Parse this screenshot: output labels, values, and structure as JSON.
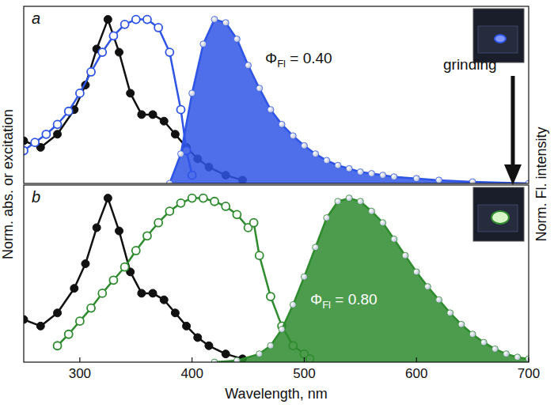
{
  "chart_data": [
    {
      "type": "line",
      "title": "a",
      "y_label": "Norm. abs. or excitation",
      "y2_label": "Norm. Fl. intensity",
      "xlim": [
        250,
        700
      ],
      "ylim": [
        0,
        1.08
      ],
      "tick_labels": false,
      "annotations": [
        {
          "text": "Φ",
          "sub": "Fl",
          "suffix": " = 0.40",
          "color": "#111111"
        },
        {
          "text": "grinding",
          "color": "#111111"
        }
      ],
      "series": [
        {
          "type": "line",
          "color": "#111111",
          "marker": "filled",
          "x": [
            250,
            265,
            280,
            295,
            305,
            315,
            325,
            335,
            345,
            355,
            365,
            375,
            385,
            395,
            405,
            415,
            430,
            445
          ],
          "values": [
            0.26,
            0.22,
            0.3,
            0.45,
            0.6,
            0.82,
            1.0,
            0.8,
            0.55,
            0.42,
            0.42,
            0.38,
            0.3,
            0.22,
            0.15,
            0.1,
            0.05,
            0.02
          ]
        },
        {
          "type": "line",
          "color": "#2f55e6",
          "marker": "open",
          "x": [
            250,
            260,
            270,
            280,
            290,
            300,
            310,
            320,
            330,
            340,
            350,
            360,
            370,
            380,
            390,
            395,
            400
          ],
          "values": [
            0.2,
            0.25,
            0.3,
            0.36,
            0.44,
            0.55,
            0.68,
            0.8,
            0.9,
            0.97,
            1.0,
            1.0,
            0.95,
            0.8,
            0.45,
            0.2,
            0.05
          ]
        },
        {
          "type": "area",
          "color": "#2f55e6",
          "marker": "sphere",
          "x": [
            380,
            390,
            400,
            410,
            420,
            430,
            440,
            450,
            460,
            470,
            480,
            490,
            500,
            510,
            520,
            530,
            540,
            550,
            560,
            570,
            580,
            600,
            620,
            650,
            700
          ],
          "values": [
            0.0,
            0.18,
            0.55,
            0.85,
            1.0,
            0.98,
            0.88,
            0.72,
            0.58,
            0.45,
            0.36,
            0.29,
            0.23,
            0.18,
            0.14,
            0.11,
            0.09,
            0.07,
            0.06,
            0.05,
            0.04,
            0.03,
            0.02,
            0.01,
            0.0
          ]
        }
      ]
    },
    {
      "type": "line",
      "title": "b",
      "x_label": "Wavelength, nm",
      "xlim": [
        250,
        700
      ],
      "ylim": [
        0,
        1.08
      ],
      "xticks": [
        300,
        400,
        500,
        600,
        700
      ],
      "tick_labels": "x",
      "annotations": [
        {
          "text": "Φ",
          "sub": "Fl",
          "suffix": " = 0.80",
          "color": "#ffffff"
        }
      ],
      "series": [
        {
          "type": "line",
          "color": "#111111",
          "marker": "filled",
          "x": [
            250,
            265,
            280,
            295,
            305,
            315,
            325,
            335,
            345,
            355,
            365,
            375,
            385,
            395,
            405,
            415,
            430,
            445
          ],
          "values": [
            0.26,
            0.22,
            0.3,
            0.45,
            0.6,
            0.82,
            1.0,
            0.8,
            0.55,
            0.42,
            0.42,
            0.38,
            0.3,
            0.22,
            0.15,
            0.1,
            0.05,
            0.02
          ]
        },
        {
          "type": "line",
          "color": "#2e8b2e",
          "marker": "open",
          "x": [
            280,
            290,
            300,
            310,
            320,
            330,
            340,
            350,
            360,
            370,
            380,
            390,
            400,
            410,
            420,
            430,
            440,
            450,
            455,
            460,
            470,
            480,
            490,
            500,
            505
          ],
          "values": [
            0.1,
            0.17,
            0.25,
            0.33,
            0.42,
            0.5,
            0.58,
            0.68,
            0.77,
            0.85,
            0.92,
            0.97,
            1.0,
            1.0,
            0.98,
            0.95,
            0.9,
            0.82,
            0.85,
            0.65,
            0.4,
            0.22,
            0.1,
            0.05,
            0.02
          ]
        },
        {
          "type": "area",
          "color": "#2e8b2e",
          "marker": "sphere",
          "x": [
            420,
            440,
            460,
            470,
            480,
            490,
            500,
            510,
            520,
            530,
            540,
            550,
            560,
            570,
            580,
            590,
            600,
            610,
            620,
            630,
            640,
            650,
            660,
            670,
            680,
            690,
            700
          ],
          "values": [
            0.0,
            0.01,
            0.05,
            0.1,
            0.2,
            0.35,
            0.52,
            0.7,
            0.88,
            0.98,
            1.0,
            0.98,
            0.92,
            0.85,
            0.75,
            0.65,
            0.55,
            0.46,
            0.38,
            0.3,
            0.23,
            0.17,
            0.12,
            0.08,
            0.05,
            0.03,
            0.02
          ]
        }
      ]
    }
  ]
}
